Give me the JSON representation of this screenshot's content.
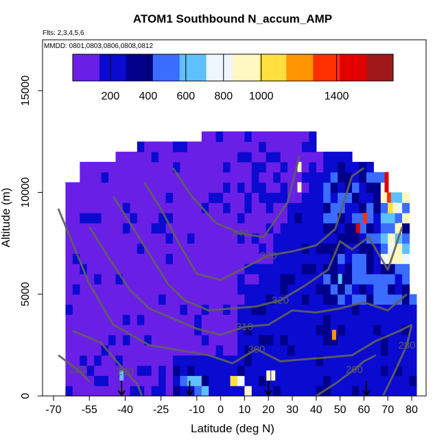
{
  "chart_data": {
    "type": "heatmap",
    "title": "ATOM1 Southbound N_accum_AMP",
    "annotations": {
      "flights": "Flts: 2,3,4,5,6",
      "dates": "MMDD: 0801,0803,0806,0808,0812"
    },
    "xlabel": "Latitude (deg N)",
    "ylabel": "Altitude (m)",
    "xlim": [
      -70,
      80
    ],
    "ylim": [
      0,
      17500
    ],
    "x_ticks": [
      -70,
      -55,
      -40,
      -25,
      -10,
      0,
      10,
      20,
      30,
      40,
      50,
      60,
      70,
      80
    ],
    "y_ticks": [
      0,
      5000,
      10000,
      15000
    ],
    "colorbar": {
      "range": [
        0,
        1700
      ],
      "ticks": [
        200,
        400,
        600,
        800,
        1000,
        1400
      ],
      "colors": [
        "#6a1fe6",
        "#0a0ad0",
        "#00008a",
        "#3a6cff",
        "#5fc0ff",
        "#eef6ff",
        "#fff8c0",
        "#ffe040",
        "#ff9500",
        "#ff3000",
        "#e00000",
        "#a01818"
      ]
    },
    "grid": false,
    "value_grid": {
      "x_start": -68,
      "x_step": 3,
      "y_start": 0,
      "y_step": 500,
      "rows_low_to_high": [
        "AAAAAAABBAAAABBBBBBCCBBBBBEBBBBBBBBBBBBBBBBBBBBBBBBBBB",
        "AAAAAAABBAAAAABBBCCCBBBBFEBBBBBBBBBBBBBBBBBBBBBBBBBBBB",
        "AAAAAAAAAAAAAAABBBBBBBBBBBBBBBBBBBBBBBBBBBBBBBBBBBBBBB",
        "AAAAAAAAAAAAAAAABBBBBBBBBBBBBBBBBBBBBBBBBBBBBBBBBBBBBB",
        "AAAAAAAAAAAAAAAAAABBBBBBBBBBBBBBBBBBBBBBBBBBBBBBBBBBBB",
        "AAAAAAAAAAAAAAAAAAABBBBBBBBBBBBBBBBBBBBBBBBBBBBBBBBBBB",
        "AAAAAAAAAAAAAAAAAAAAABBBBBBBBBBBBBBBBBBBBBBBBBBBBBBBBB",
        "AAAAAAAAAAAAAAAAAAAAAABBBBBBBBBBBBBBBBBBBBBBBBBBBBBBBB",
        "AAAAAAAAAAAAAAAAAAAAAAAABBBBBBBBBBBBBBBBBBBBBBBBBBBBBB",
        "AAAAAAAAAAAAAAAAAAAAAAAAAABBBBBBBBBBBBBBBBBBBBBBBBBBBB",
        "AAAAAAAAAAAAAAAAAAAAAAAAAAABBBBBBBBBBBBBBBBBBBBBBBBBBB",
        "AAAAAAAAAAAAAAAAAAAAAAAAAAAABBBBBBBBBBBBBBBBBBBBBBBBBB",
        "AAAAAAAAAAAAAAAAAAAAAAAAAAAAABBBBBBBBBBBBBBBBBBBBBBBBB",
        "AAAAAAAAAAAAAAAAAAAAAAAAAAAAAABBBBBBBBBBBBBBBBBBBBBBBB",
        "AAAAAAAAAAAAAAAAAAAAAAAAAAAAAABBBBBBBBBBBBBBBBBBBBBBBB",
        "AAAAAAAAAAAAAAAAAAAAAAAAAAAAAAABBBBBBBBBBBBBBBBBBBBBBB",
        "AAAAAAAAAAAAAAAAAAAAAAAAAAAAAAAABBBBBBBBBBBBBBBBBBBBBB",
        "AAAAAAAAAAAAAAAAAAAAAAAAAAAAAAAAABBBBBBBBBBBBBBBBBBBBB",
        "AAAAAAAAAAAAAAAAAAAAAAAAAAAAAAAAAABBBBBBBBBBBBBBBBBBBB",
        "AAAAAAAAAAAAAAAAAAAAAAAAAAAAAAAAAAABBBBBBBBBBBBBBBBBBB",
        "AAAAAAAAAAAAAAAAAAAAAAAAAAAAAAAAAAABBBBBBBBBBBBBBBBBBB",
        "AAAAAAAAAAAAAAAAAAAAAAAAAAAAAAAAAAAABBBBBBBBBBBBBBBBBB",
        "AAAAAAAAAAAAAAAAAAAAAAAAAAAAAAAAAAAAABBBBBBBBBBBBBBBBB",
        "AAAAAAAAAAAAAAAAAAAAAAAAAAAAAAAAAAAAAABBBBBBBBBBBBBBBB",
        "AAAAAAAAAAAAAAAAAAAAAAAAAAAAAAAAAAAAAAABBBBBBBBBBBBBBB",
        "AAAAAAAAAAAAAAAAAAAAAAAAAAAAAAAAAAAAAAAABBBBBBBBBBBBBB",
        "AAAAAAAAAAAAAAAAAAAAAAAAAAAAAAAAAAAAAAAAABBBBBBBBBBBBB",
        "AAAAAAAAAAAAAAAAAAAAAAAAAAAAAAAAAAAAAAAAAABBBBBBBBBBBB",
        "AAAAAAAAAAAAAAAAAAAAAAAAAAAAAAAAAAAAAAAAAAABBBBBBBBBBB",
        "AAAAAAAAAAAAAAAAAAAAAAAAAAAAAAAAAAAAAAAAAAAABBBBBBBBBB",
        "AAAAAAAAAAAAAAAAAAAAAAAAAAAAAAAAAAAAAAAAAAAAABBBBBBBBB",
        "AAAAAAAAAAAAAAAAAAAAAAAAAAAAAAAAAAAAAAAAAAAAAABBBBBBBB"
      ],
      "cell_values": {
        "A": 120,
        "B": 240,
        "C": 560,
        "D": 720,
        "E": 880,
        "F": 1000,
        "G": 1150,
        "H": 1300,
        "I": 1500
      }
    },
    "hotspots": [
      {
        "x": 47.5,
        "y": 2750,
        "value": 1250
      },
      {
        "x": 57.5,
        "y": 8000,
        "value": 1550
      },
      {
        "x": 60.5,
        "y": 8500,
        "value": 1400
      },
      {
        "x": 69.5,
        "y": 10000,
        "value": 1550
      },
      {
        "x": 69.5,
        "y": 10500,
        "value": 1450
      },
      {
        "x": 70.5,
        "y": 9500,
        "value": 1300
      },
      {
        "x": 33,
        "y": 11000,
        "value": 900
      },
      {
        "x": 33,
        "y": 10000,
        "value": 980
      },
      {
        "x": 73,
        "y": 9000,
        "value": 950
      },
      {
        "x": 75,
        "y": 8000,
        "value": 900
      },
      {
        "x": -41.5,
        "y": 750,
        "value": 700
      },
      {
        "x": 20,
        "y": 750,
        "value": 950
      },
      {
        "x": 22,
        "y": 750,
        "value": 900
      },
      {
        "x": 50,
        "y": 5500,
        "value": 600
      }
    ],
    "contours": [
      {
        "label": "280",
        "points": [
          [
            -68,
            2000
          ],
          [
            -60,
            1300
          ],
          [
            -55,
            700
          ]
        ]
      },
      {
        "label": "280",
        "points": [
          [
            68,
            0
          ],
          [
            73,
            1200
          ],
          [
            78,
            2500
          ],
          [
            80,
            3500
          ]
        ]
      },
      {
        "label": "290",
        "points": [
          [
            -62,
            3200
          ],
          [
            -50,
            2600
          ],
          [
            -40,
            1200
          ],
          [
            -35,
            600
          ],
          [
            -33,
            0
          ]
        ]
      },
      {
        "label": "290",
        "points": [
          [
            40,
            0
          ],
          [
            48,
            600
          ],
          [
            56,
            1300
          ],
          [
            60,
            1700
          ],
          [
            65,
            2000
          ]
        ]
      },
      {
        "label": "300",
        "points": [
          [
            -68,
            9200
          ],
          [
            -62,
            7500
          ],
          [
            -55,
            5500
          ],
          [
            -45,
            3500
          ],
          [
            -30,
            2500
          ],
          [
            -15,
            2200
          ],
          [
            -5,
            2000
          ],
          [
            5,
            1600
          ],
          [
            15,
            2300
          ],
          [
            25,
            1700
          ],
          [
            35,
            1800
          ],
          [
            45,
            1900
          ],
          [
            55,
            2000
          ],
          [
            65,
            2700
          ],
          [
            75,
            3200
          ],
          [
            80,
            3500
          ]
        ]
      },
      {
        "label": "310",
        "points": [
          [
            -55,
            8300
          ],
          [
            -48,
            7000
          ],
          [
            -38,
            5200
          ],
          [
            -30,
            4300
          ],
          [
            -20,
            3800
          ],
          [
            -10,
            3300
          ],
          [
            0,
            3000
          ],
          [
            10,
            3400
          ],
          [
            20,
            3500
          ],
          [
            30,
            4200
          ],
          [
            40,
            4100
          ],
          [
            50,
            4300
          ],
          [
            60,
            4600
          ],
          [
            70,
            4200
          ],
          [
            78,
            5000
          ]
        ]
      },
      {
        "label": "320",
        "points": [
          [
            -45,
            9800
          ],
          [
            -38,
            8500
          ],
          [
            -30,
            7000
          ],
          [
            -22,
            5500
          ],
          [
            -15,
            4700
          ],
          [
            -5,
            4200
          ],
          [
            5,
            4300
          ],
          [
            15,
            4400
          ],
          [
            25,
            4700
          ],
          [
            35,
            5400
          ],
          [
            45,
            6200
          ],
          [
            50,
            7600
          ],
          [
            55,
            7200
          ],
          [
            62,
            7800
          ],
          [
            70,
            6200
          ],
          [
            76,
            8300
          ]
        ]
      },
      {
        "label": "330",
        "points": [
          [
            -32,
            10500
          ],
          [
            -25,
            9200
          ],
          [
            -18,
            7600
          ],
          [
            -10,
            6000
          ],
          [
            0,
            5700
          ],
          [
            10,
            6300
          ],
          [
            20,
            6900
          ],
          [
            30,
            7100
          ],
          [
            40,
            7400
          ],
          [
            48,
            8200
          ],
          [
            55,
            10800
          ],
          [
            60,
            11200
          ]
        ]
      },
      {
        "label": "340",
        "points": [
          [
            -20,
            11200
          ],
          [
            -12,
            9800
          ],
          [
            -2,
            8500
          ],
          [
            8,
            8000
          ],
          [
            18,
            7800
          ],
          [
            28,
            9500
          ],
          [
            33,
            11800
          ]
        ]
      }
    ],
    "flight_markers_x": [
      -41.5,
      -13,
      20,
      61
    ]
  }
}
